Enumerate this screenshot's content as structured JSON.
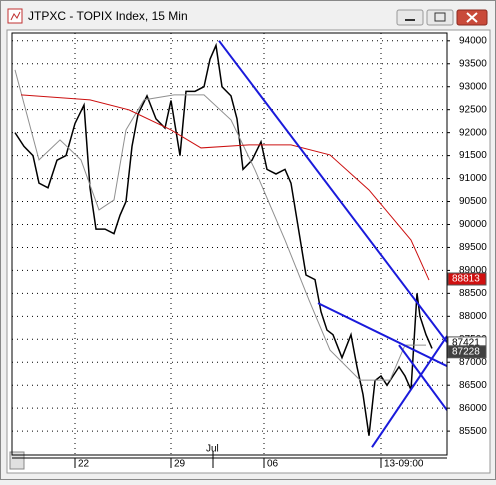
{
  "chart_data": {
    "type": "line",
    "title": "JTPXC - TOPIX Index, 15 Min",
    "xlim": [
      0,
      145
    ],
    "xticks": [
      {
        "value": 21,
        "label": "22"
      },
      {
        "value": 53,
        "label": "29"
      },
      {
        "value": 84,
        "label": "06"
      },
      {
        "value": 123,
        "label": "13-09:00"
      }
    ],
    "month_marker": {
      "value": 67,
      "label": "Jul"
    },
    "ylim": [
      84980,
      94170
    ],
    "yticks": [
      94000,
      93500,
      93000,
      92500,
      92000,
      91500,
      91000,
      90500,
      90000,
      89500,
      89000,
      88500,
      88000,
      87500,
      87000,
      86500,
      86000,
      85500
    ],
    "grid": true,
    "series": [
      {
        "color": "#000000",
        "x": [
          1,
          4,
          7,
          9,
          12,
          15,
          18,
          21,
          24,
          26,
          28,
          31,
          34,
          36,
          38,
          40,
          42,
          45,
          48,
          51,
          53,
          56,
          58,
          61,
          64,
          66,
          68,
          70,
          73,
          75,
          77,
          80,
          83,
          85,
          88,
          91,
          93,
          96,
          98,
          101,
          103,
          105,
          107,
          110,
          113,
          115,
          117,
          119,
          121,
          123,
          125,
          127,
          129,
          131,
          133,
          135,
          136,
          138,
          140
        ],
        "values": [
          92000,
          91700,
          91500,
          90900,
          90800,
          91400,
          91500,
          92200,
          92600,
          90800,
          89900,
          89900,
          89800,
          90200,
          90500,
          91700,
          92400,
          92800,
          92300,
          92100,
          92700,
          91500,
          92900,
          92900,
          93000,
          93600,
          93900,
          93000,
          92800,
          92300,
          91200,
          91400,
          91800,
          91200,
          91100,
          91200,
          90900,
          89700,
          88900,
          88800,
          88100,
          87700,
          87600,
          87100,
          87600,
          86900,
          86300,
          85400,
          86600,
          86700,
          86500,
          86700,
          86900,
          86700,
          86400,
          88500,
          88000,
          87600,
          87300
        ]
      },
      {
        "color": "#909090",
        "x": [
          1,
          9,
          16,
          23,
          29,
          34,
          38,
          44,
          54,
          64,
          73,
          81,
          91,
          99,
          106,
          116,
          126,
          131,
          138
        ],
        "values": [
          93368,
          91406,
          91842,
          91406,
          90316,
          90534,
          92060,
          92714,
          92823,
          92823,
          92278,
          91188,
          89662,
          88354,
          87264,
          86610,
          86610,
          87373,
          87373
        ]
      },
      {
        "color": "#cc1010",
        "x": [
          3,
          26,
          39,
          53,
          63,
          79,
          93,
          106,
          119,
          133,
          139
        ],
        "values": [
          92823,
          92714,
          92496,
          92060,
          91667,
          91733,
          91733,
          91515,
          90752,
          89662,
          88790
        ]
      }
    ],
    "trendline_color": "#1a1adb",
    "trendlines": [
      {
        "x": [
          69,
          145
        ],
        "values": [
          94000,
          87438
        ]
      },
      {
        "x": [
          102,
          145
        ],
        "values": [
          88288,
          86915
        ]
      },
      {
        "x": [
          120,
          145
        ],
        "values": [
          85149,
          87569
        ]
      },
      {
        "x": [
          129,
          145
        ],
        "values": [
          87373,
          85956
        ]
      }
    ],
    "price_labels": [
      {
        "value": 88813,
        "color": "#d01010",
        "text_color": "#ffffff"
      },
      {
        "value": 87421,
        "color": "#ffffff",
        "text_color": "#000000"
      },
      {
        "value": 87228,
        "color": "#404040",
        "text_color": "#ffffff"
      }
    ]
  }
}
